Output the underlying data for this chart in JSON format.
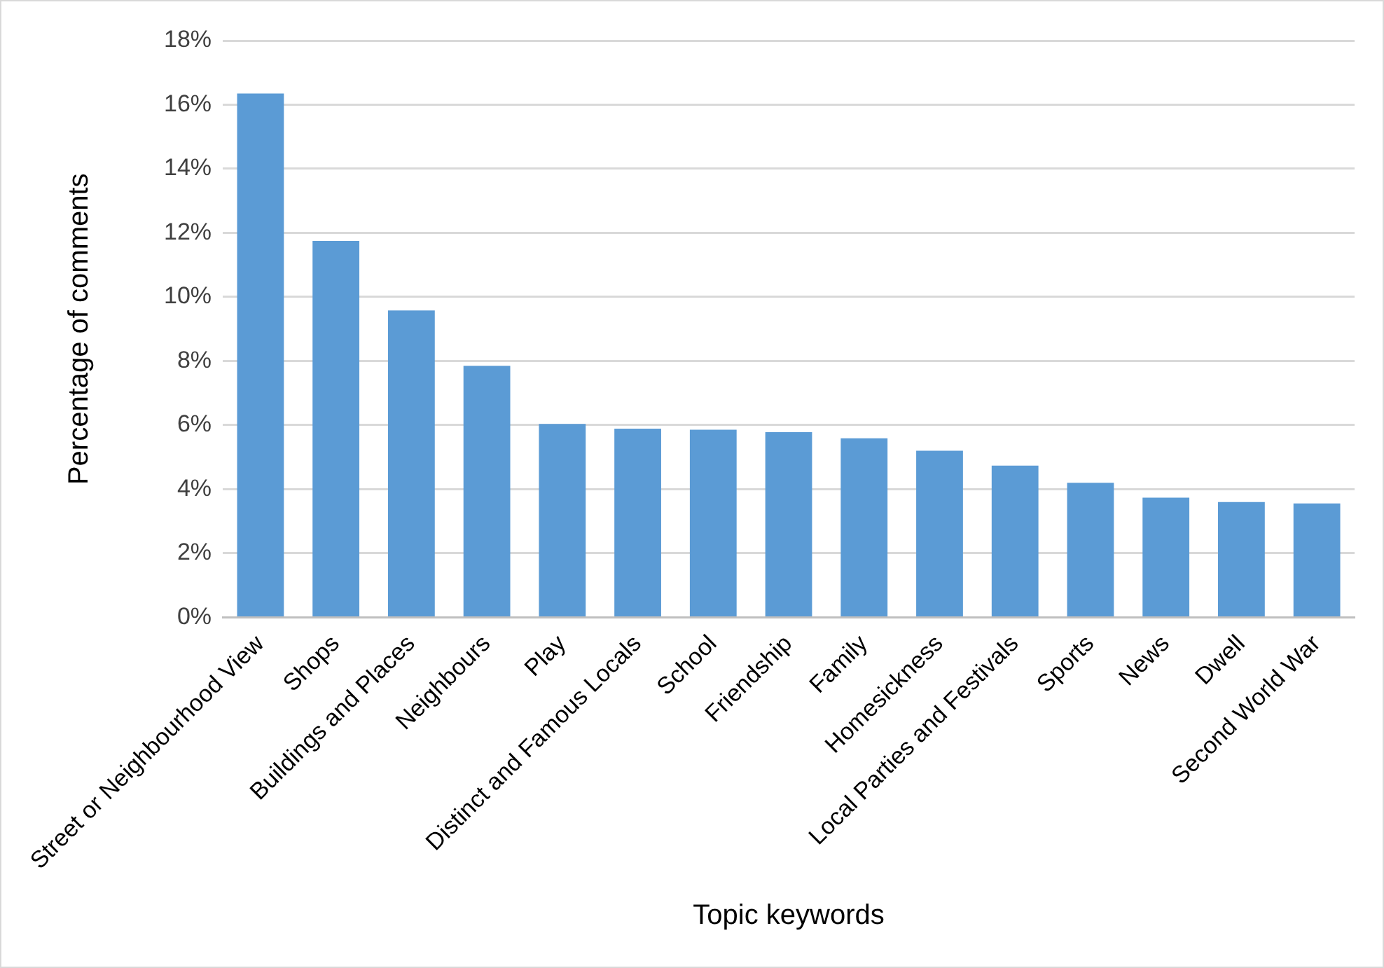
{
  "chart_data": {
    "type": "bar",
    "xlabel": "Topic keywords",
    "ylabel": "Percentage of comments",
    "categories": [
      "Street or Neighbourhood View",
      "Shops",
      "Buildings and Places",
      "Neighbours",
      "Play",
      "Distinct and Famous Locals",
      "School",
      "Friendship",
      "Family",
      "Homesickness",
      "Local Parties and Festivals",
      "Sports",
      "News",
      "Dwell",
      "Second World War"
    ],
    "values": [
      16.35,
      11.75,
      9.58,
      7.85,
      6.04,
      5.89,
      5.86,
      5.78,
      5.59,
      5.2,
      4.74,
      4.2,
      3.74,
      3.6,
      3.56
    ],
    "color": "#5b9bd5",
    "ylim": [
      0,
      18
    ],
    "yticks": [
      {
        "value": 0,
        "label": "0%"
      },
      {
        "value": 2,
        "label": "2%"
      },
      {
        "value": 4,
        "label": "4%"
      },
      {
        "value": 6,
        "label": "6%"
      },
      {
        "value": 8,
        "label": "8%"
      },
      {
        "value": 10,
        "label": "10%"
      },
      {
        "value": 12,
        "label": "12%"
      },
      {
        "value": 14,
        "label": "14%"
      },
      {
        "value": 16,
        "label": "16%"
      },
      {
        "value": 18,
        "label": "18%"
      }
    ],
    "grid": "y",
    "legend": false
  }
}
